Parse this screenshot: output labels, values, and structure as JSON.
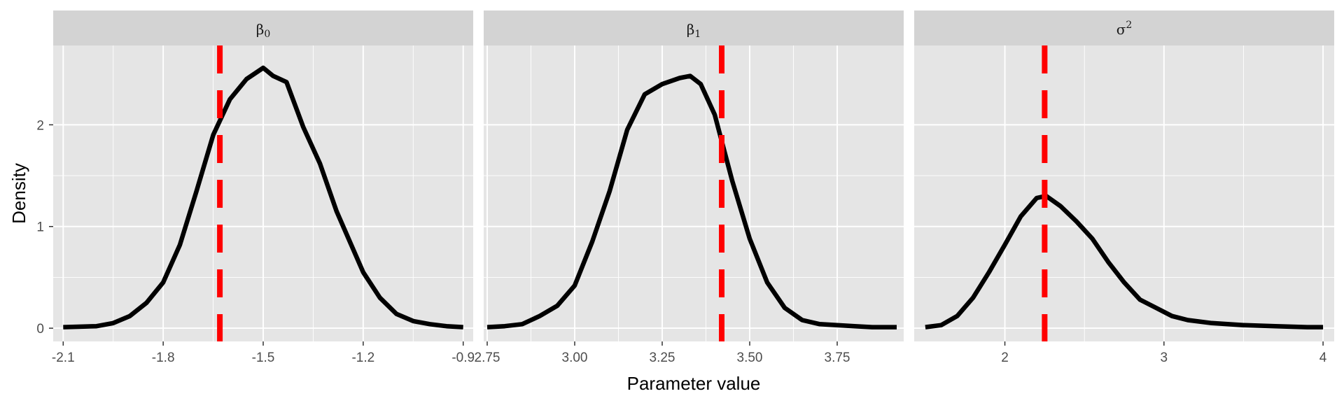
{
  "chart_data": {
    "type": "line",
    "xlabel": "Parameter value",
    "ylabel": "Density",
    "grid": true,
    "y_ticks": [
      0,
      1,
      2
    ],
    "ylim": [
      -0.13,
      2.78
    ],
    "colors": {
      "density": "#000000",
      "reference": "#ff0000",
      "panel_bg": "#e5e5e5",
      "strip_bg": "#d3d3d3",
      "grid": "#ffffff"
    },
    "panels": [
      {
        "strip_label": "β",
        "strip_sub": "0",
        "strip_sup": "",
        "xlim": [
          -2.13,
          -0.87
        ],
        "x_ticks": [
          -2.1,
          -1.8,
          -1.5,
          -1.2,
          -0.9
        ],
        "x_tick_labels": [
          "-2.1",
          "-1.8",
          "-1.5",
          "-1.2",
          "-0.9"
        ],
        "reference_line": -1.63,
        "series": {
          "x": [
            -2.1,
            -2.0,
            -1.95,
            -1.9,
            -1.85,
            -1.8,
            -1.75,
            -1.7,
            -1.65,
            -1.6,
            -1.55,
            -1.5,
            -1.47,
            -1.43,
            -1.38,
            -1.33,
            -1.28,
            -1.2,
            -1.15,
            -1.1,
            -1.05,
            -1.0,
            -0.95,
            -0.9
          ],
          "y": [
            0.01,
            0.02,
            0.05,
            0.12,
            0.25,
            0.45,
            0.82,
            1.35,
            1.9,
            2.25,
            2.45,
            2.56,
            2.48,
            2.42,
            1.98,
            1.62,
            1.15,
            0.55,
            0.3,
            0.14,
            0.07,
            0.04,
            0.02,
            0.01
          ]
        }
      },
      {
        "strip_label": "β",
        "strip_sub": "1",
        "strip_sup": "",
        "xlim": [
          2.74,
          3.94
        ],
        "x_ticks": [
          2.75,
          3.0,
          3.25,
          3.5,
          3.75
        ],
        "x_tick_labels": [
          "2.75",
          "3.00",
          "3.25",
          "3.50",
          "3.75"
        ],
        "reference_line": 3.42,
        "series": {
          "x": [
            2.75,
            2.8,
            2.85,
            2.9,
            2.95,
            3.0,
            3.05,
            3.1,
            3.15,
            3.2,
            3.25,
            3.3,
            3.33,
            3.36,
            3.4,
            3.45,
            3.5,
            3.55,
            3.6,
            3.65,
            3.7,
            3.75,
            3.8,
            3.85,
            3.92
          ],
          "y": [
            0.01,
            0.02,
            0.04,
            0.12,
            0.22,
            0.42,
            0.85,
            1.35,
            1.95,
            2.3,
            2.4,
            2.46,
            2.48,
            2.4,
            2.1,
            1.45,
            0.88,
            0.45,
            0.2,
            0.08,
            0.04,
            0.03,
            0.02,
            0.01,
            0.01
          ]
        }
      },
      {
        "strip_label": "σ",
        "strip_sub": "",
        "strip_sup": "2",
        "xlim": [
          1.43,
          4.07
        ],
        "x_ticks": [
          2,
          3,
          4
        ],
        "x_tick_labels": [
          "2",
          "3",
          "4"
        ],
        "reference_line": 2.25,
        "series": {
          "x": [
            1.5,
            1.6,
            1.7,
            1.8,
            1.9,
            2.0,
            2.1,
            2.2,
            2.26,
            2.35,
            2.45,
            2.55,
            2.65,
            2.75,
            2.85,
            2.95,
            3.05,
            3.15,
            3.3,
            3.5,
            3.7,
            3.9,
            4.0
          ],
          "y": [
            0.01,
            0.03,
            0.12,
            0.3,
            0.55,
            0.82,
            1.1,
            1.28,
            1.3,
            1.2,
            1.05,
            0.88,
            0.65,
            0.45,
            0.28,
            0.2,
            0.12,
            0.08,
            0.05,
            0.03,
            0.02,
            0.01,
            0.01
          ]
        }
      }
    ]
  }
}
